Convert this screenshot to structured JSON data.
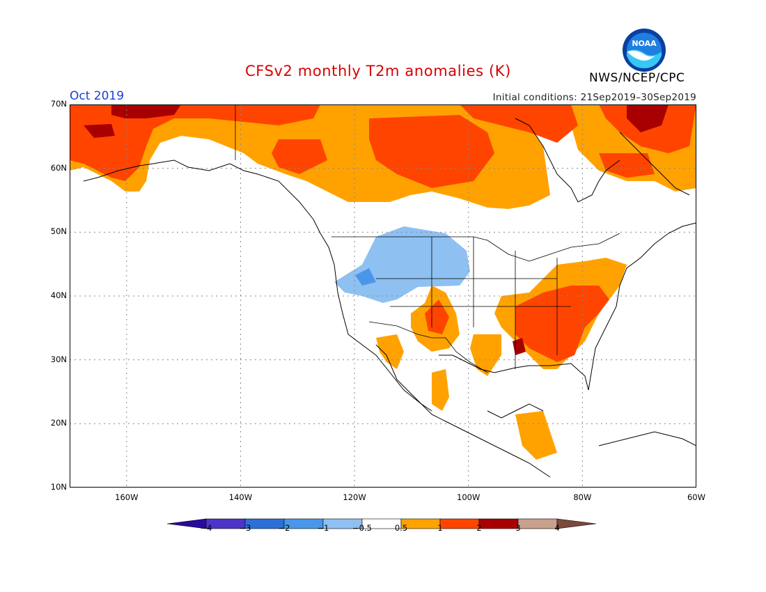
{
  "title": "CFSv2 monthly T2m anomalies (K)",
  "month": "Oct 2019",
  "initial_conditions": "Initial conditions: 21Sep2019–30Sep2019",
  "agency": "NWS/NCEP/CPC",
  "logo_text": "NOAA",
  "lat_labels": [
    "70N",
    "60N",
    "50N",
    "40N",
    "30N",
    "20N",
    "10N"
  ],
  "lon_labels": [
    "160W",
    "140W",
    "120W",
    "100W",
    "80W",
    "60W"
  ],
  "colorbar": {
    "labels": [
      "−4",
      "−3",
      "−2",
      "−1",
      "−0.5",
      "0.5",
      "1",
      "2",
      "3",
      "4"
    ],
    "colors": [
      "#2a0a9c",
      "#4b35c8",
      "#2c6fd6",
      "#4a97ea",
      "#8ec0f2",
      "#ffffff",
      "#ffa200",
      "#ff4400",
      "#a80000",
      "#c9a08c",
      "#7a4a3c"
    ]
  },
  "map": {
    "lat_range": [
      10,
      70
    ],
    "lon_range": [
      -170,
      -60
    ],
    "legend_units": "K"
  }
}
